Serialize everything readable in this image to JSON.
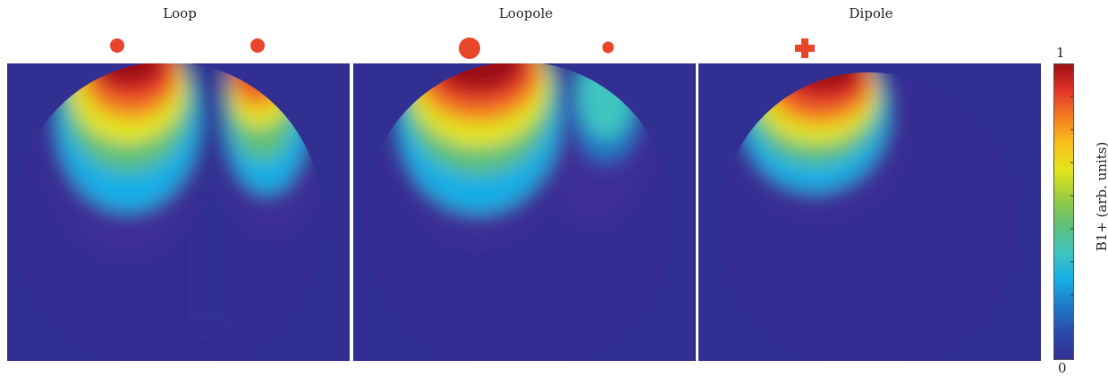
{
  "panels": [
    {
      "title": "Loop"
    },
    {
      "title": "Loopole"
    },
    {
      "title": "Dipole"
    }
  ],
  "colorbar": {
    "max_label": "1",
    "min_label": "0",
    "axis_label": "B1+ (arb. units)",
    "colors": [
      "#322f93",
      "#2b4aa8",
      "#1f79c8",
      "#14aee6",
      "#3fc4c0",
      "#5cc07c",
      "#9ccd3e",
      "#e3e51c",
      "#fbc11c",
      "#f57e21",
      "#e3332a",
      "#9b0d12"
    ]
  },
  "markers": {
    "color": "#e8462a",
    "shapes": [
      "circle",
      "circle",
      "large-circle",
      "small-circle",
      "cross"
    ]
  }
}
